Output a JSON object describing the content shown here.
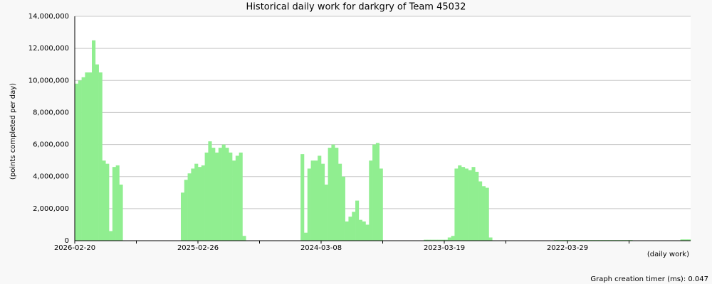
{
  "chart_data": {
    "type": "bar",
    "title": "Historical daily work for darkgry of Team 45032",
    "ylabel": "(points completed per day)",
    "xlabel": "(daily work)",
    "footer": "Graph creation timer (ms): 0.047",
    "color": "#90ee90",
    "grid": true,
    "ylim": [
      0,
      14000000
    ],
    "yticks": [
      {
        "value": 0,
        "label": "0"
      },
      {
        "value": 2000000,
        "label": "2,000,000"
      },
      {
        "value": 4000000,
        "label": "4,000,000"
      },
      {
        "value": 6000000,
        "label": "6,000,000"
      },
      {
        "value": 8000000,
        "label": "8,000,000"
      },
      {
        "value": 10000000,
        "label": "10,000,000"
      },
      {
        "value": 12000000,
        "label": "12,000,000"
      },
      {
        "value": 14000000,
        "label": "14,000,000"
      }
    ],
    "categories": [
      "2026-02-20",
      null,
      null,
      null,
      null,
      null,
      null,
      null,
      null,
      null,
      null,
      null,
      null,
      null,
      null,
      null,
      null,
      null,
      null,
      null,
      null,
      null,
      null,
      null,
      null,
      null,
      null,
      null,
      null,
      null,
      null,
      null,
      null,
      null,
      null,
      null,
      "2025-02-26",
      null,
      null,
      null,
      null,
      null,
      null,
      null,
      null,
      null,
      null,
      null,
      null,
      null,
      null,
      null,
      null,
      null,
      null,
      null,
      null,
      null,
      null,
      null,
      null,
      null,
      null,
      null,
      null,
      null,
      null,
      null,
      null,
      null,
      null,
      null,
      "2024-03-08",
      null,
      null,
      null,
      null,
      null,
      null,
      null,
      null,
      null,
      null,
      null,
      null,
      null,
      null,
      null,
      null,
      null,
      null,
      null,
      null,
      null,
      null,
      null,
      null,
      null,
      null,
      null,
      null,
      null,
      null,
      null,
      null,
      null,
      null,
      null,
      "2023-03-19",
      null,
      null,
      null,
      null,
      null,
      null,
      null,
      null,
      null,
      null,
      null,
      null,
      null,
      null,
      null,
      null,
      null,
      null,
      null,
      null,
      null,
      null,
      null,
      null,
      null,
      null,
      null,
      null,
      null,
      null,
      null,
      null,
      null,
      null,
      null,
      "2022-03-29",
      null,
      null,
      null,
      null,
      null,
      null,
      null,
      null,
      null,
      null,
      null,
      null,
      null,
      null,
      null,
      null,
      null,
      null,
      null,
      null,
      null,
      null,
      null,
      null,
      null,
      null,
      null,
      null,
      null,
      null,
      null,
      null,
      null,
      null,
      null
    ],
    "values": [
      9800000,
      10000000,
      10200000,
      10500000,
      10500000,
      12500000,
      11000000,
      10500000,
      5000000,
      4800000,
      600000,
      4600000,
      4700000,
      3500000,
      0,
      0,
      0,
      0,
      0,
      0,
      0,
      0,
      0,
      0,
      0,
      0,
      0,
      0,
      0,
      0,
      0,
      3000000,
      3800000,
      4200000,
      4500000,
      4800000,
      4600000,
      4700000,
      5500000,
      6200000,
      5800000,
      5500000,
      5800000,
      6000000,
      5800000,
      5500000,
      5000000,
      5300000,
      5500000,
      300000,
      0,
      0,
      0,
      0,
      0,
      0,
      0,
      0,
      0,
      0,
      0,
      0,
      0,
      0,
      0,
      0,
      5400000,
      500000,
      4500000,
      5000000,
      5000000,
      5300000,
      4800000,
      3500000,
      5800000,
      6000000,
      5800000,
      4800000,
      4000000,
      1200000,
      1500000,
      1800000,
      2500000,
      1300000,
      1200000,
      1000000,
      5000000,
      6000000,
      6100000,
      4500000,
      0,
      0,
      0,
      0,
      0,
      0,
      0,
      0,
      0,
      0,
      0,
      0,
      60000,
      60000,
      60000,
      60000,
      60000,
      60000,
      60000,
      200000,
      300000,
      4500000,
      4700000,
      4600000,
      4500000,
      4400000,
      4600000,
      4300000,
      3700000,
      3400000,
      3300000,
      200000,
      0,
      0,
      0,
      0,
      0,
      0,
      0,
      0,
      0,
      0,
      0,
      0,
      0,
      0,
      0,
      0,
      0,
      0,
      40000,
      40000,
      40000,
      40000,
      40000,
      40000,
      40000,
      40000,
      40000,
      40000,
      40000,
      40000,
      40000,
      40000,
      40000,
      40000,
      40000,
      40000,
      40000,
      40000,
      40000,
      40000,
      40000,
      0,
      0,
      0,
      0,
      0,
      0,
      0,
      0,
      0,
      0,
      0,
      0,
      0,
      0,
      80000,
      80000,
      80000
    ]
  }
}
